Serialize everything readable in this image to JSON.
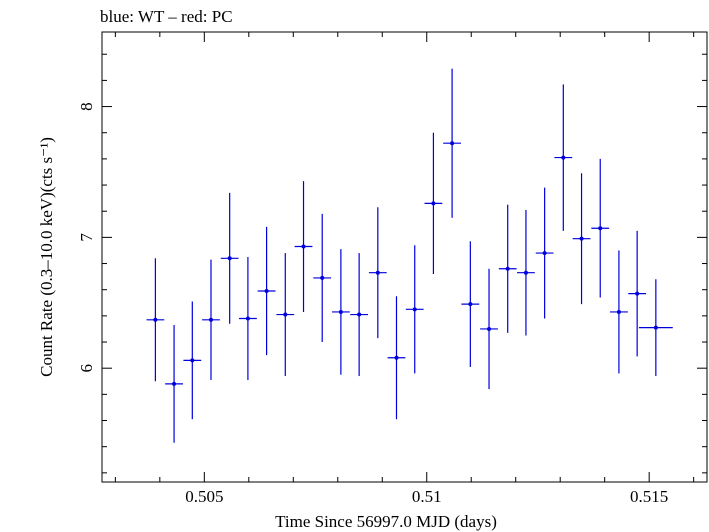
{
  "chart_data": {
    "type": "scatter",
    "title": "blue: WT – red: PC",
    "xlabel": "Time Since 56997.0 MJD (days)",
    "ylabel": "Count Rate (0.3–10.0 keV)(cts s⁻¹)",
    "xlim": [
      0.5027,
      0.5163
    ],
    "ylim": [
      5.13,
      8.57
    ],
    "x_major_ticks": [
      0.505,
      0.51,
      0.515
    ],
    "x_tick_labels": [
      "0.505",
      "0.51",
      "0.515"
    ],
    "x_minor_step": 0.001,
    "y_major_ticks": [
      6,
      7,
      8
    ],
    "y_tick_labels": [
      "6",
      "7",
      "8"
    ],
    "y_minor_step": 0.2,
    "grid": false,
    "series": [
      {
        "color": "#0000dd",
        "points": [
          {
            "x": 0.5039,
            "xerr": 0.0002,
            "y": 6.37,
            "yerr": 0.47
          },
          {
            "x": 0.50432,
            "xerr": 0.0002,
            "y": 5.88,
            "yerr": 0.45
          },
          {
            "x": 0.50473,
            "xerr": 0.0002,
            "y": 6.06,
            "yerr": 0.45
          },
          {
            "x": 0.50515,
            "xerr": 0.0002,
            "y": 6.37,
            "yerr": 0.46
          },
          {
            "x": 0.50557,
            "xerr": 0.0002,
            "y": 6.84,
            "yerr": 0.5
          },
          {
            "x": 0.50598,
            "xerr": 0.0002,
            "y": 6.38,
            "yerr": 0.47
          },
          {
            "x": 0.5064,
            "xerr": 0.0002,
            "y": 6.59,
            "yerr": 0.49
          },
          {
            "x": 0.50682,
            "xerr": 0.0002,
            "y": 6.41,
            "yerr": 0.47
          },
          {
            "x": 0.50723,
            "xerr": 0.0002,
            "y": 6.93,
            "yerr": 0.5
          },
          {
            "x": 0.50765,
            "xerr": 0.0002,
            "y": 6.69,
            "yerr": 0.49
          },
          {
            "x": 0.50807,
            "xerr": 0.0002,
            "y": 6.43,
            "yerr": 0.48
          },
          {
            "x": 0.50848,
            "xerr": 0.0002,
            "y": 6.41,
            "yerr": 0.47
          },
          {
            "x": 0.5089,
            "xerr": 0.0002,
            "y": 6.73,
            "yerr": 0.5
          },
          {
            "x": 0.50932,
            "xerr": 0.0002,
            "y": 6.08,
            "yerr": 0.47
          },
          {
            "x": 0.50973,
            "xerr": 0.0002,
            "y": 6.45,
            "yerr": 0.49
          },
          {
            "x": 0.51015,
            "xerr": 0.0002,
            "y": 7.26,
            "yerr": 0.54
          },
          {
            "x": 0.51057,
            "xerr": 0.0002,
            "y": 7.72,
            "yerr": 0.57
          },
          {
            "x": 0.51098,
            "xerr": 0.0002,
            "y": 6.49,
            "yerr": 0.48
          },
          {
            "x": 0.5114,
            "xerr": 0.0002,
            "y": 6.3,
            "yerr": 0.46
          },
          {
            "x": 0.51182,
            "xerr": 0.0002,
            "y": 6.76,
            "yerr": 0.49
          },
          {
            "x": 0.51223,
            "xerr": 0.0002,
            "y": 6.73,
            "yerr": 0.48
          },
          {
            "x": 0.51265,
            "xerr": 0.0002,
            "y": 6.88,
            "yerr": 0.5
          },
          {
            "x": 0.51307,
            "xerr": 0.0002,
            "y": 7.61,
            "yerr": 0.56
          },
          {
            "x": 0.51348,
            "xerr": 0.0002,
            "y": 6.99,
            "yerr": 0.5
          },
          {
            "x": 0.5139,
            "xerr": 0.0002,
            "y": 7.07,
            "yerr": 0.53
          },
          {
            "x": 0.51432,
            "xerr": 0.0002,
            "y": 6.43,
            "yerr": 0.47
          },
          {
            "x": 0.51473,
            "xerr": 0.0002,
            "y": 6.57,
            "yerr": 0.48
          },
          {
            "x": 0.51515,
            "xerr": 0.00038,
            "y": 6.31,
            "yerr": 0.37
          }
        ]
      }
    ]
  }
}
